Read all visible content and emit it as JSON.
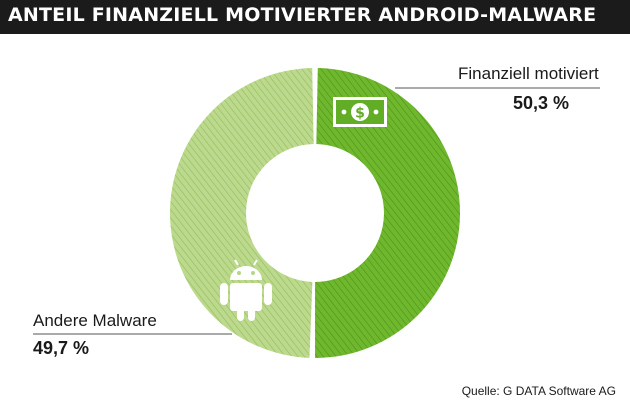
{
  "header": {
    "title": "ANTEIL FINANZIELL MOTIVIERTER ANDROID-MALWARE"
  },
  "chart_data": {
    "type": "pie",
    "categories": [
      "Finanziell motiviert",
      "Andere Malware"
    ],
    "values": [
      50.3,
      49.7
    ],
    "value_labels": [
      "50,3 %",
      "49,7 %"
    ],
    "unit": "%",
    "colors": [
      "#6ab52a",
      "#b6d685"
    ],
    "icons": [
      "dollar-bill-icon",
      "android-robot-icon"
    ],
    "legend": "none",
    "title": "ANTEIL FINANZIELL MOTIVIERTER ANDROID-MALWARE"
  },
  "source": "Quelle: G DATA Software AG"
}
